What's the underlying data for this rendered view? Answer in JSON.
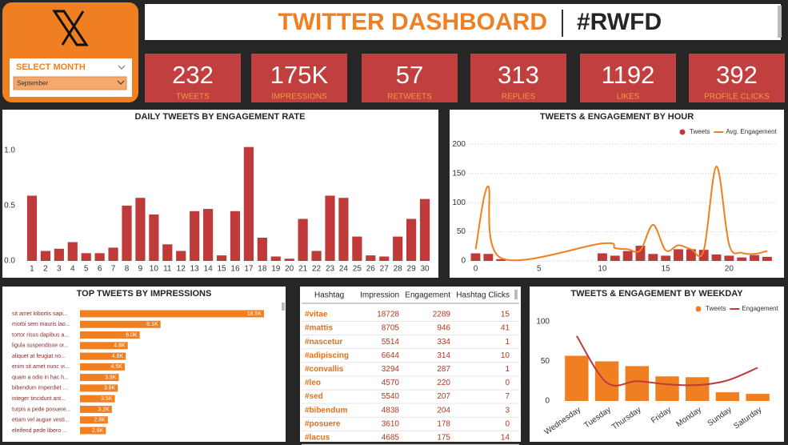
{
  "header": {
    "title": "TWITTER DASHBOARD",
    "tag": "#RWFD"
  },
  "filter": {
    "label": "SELECT MONTH",
    "value": "September"
  },
  "kpis": [
    {
      "value": "232",
      "label": "TWEETS"
    },
    {
      "value": "175K",
      "label": "IMPRESSIONS"
    },
    {
      "value": "57",
      "label": "RETWEETS"
    },
    {
      "value": "313",
      "label": "REPLIES"
    },
    {
      "value": "1192",
      "label": "LIKES"
    },
    {
      "value": "392",
      "label": "PROFILE CLICKS"
    }
  ],
  "chart_data": [
    {
      "type": "bar",
      "title": "DAILY TWEETS BY ENGAGEMENT RATE",
      "categories": [
        1,
        2,
        3,
        4,
        5,
        6,
        7,
        8,
        9,
        10,
        11,
        12,
        13,
        14,
        15,
        16,
        17,
        18,
        19,
        20,
        21,
        22,
        23,
        24,
        25,
        26,
        27,
        28,
        29,
        30
      ],
      "values": [
        0.59,
        0.09,
        0.11,
        0.17,
        0.07,
        0.07,
        0.12,
        0.5,
        0.57,
        0.42,
        0.15,
        0.09,
        0.45,
        0.47,
        0.05,
        0.45,
        1.03,
        0.21,
        0.04,
        0.02,
        0.38,
        0.09,
        0.59,
        0.57,
        0.22,
        0.05,
        0.04,
        0.22,
        0.38,
        0.56
      ],
      "color": "#c0393b",
      "ylim": [
        0,
        1.1
      ],
      "yticks": [
        {
          "value": 0,
          "label": "0.0"
        },
        {
          "value": 0.5,
          "label": "0.5"
        },
        {
          "value": 1,
          "label": "1.0"
        }
      ],
      "grid": false
    },
    {
      "type": "combo",
      "title": "TWEETS & ENGAGEMENT BY HOUR",
      "x": [
        0,
        1,
        2,
        10,
        11,
        12,
        13,
        14,
        15,
        16,
        17,
        18,
        19,
        20,
        21,
        22,
        23
      ],
      "series": [
        {
          "name": "Tweets",
          "type": "bar",
          "color": "#c0393b",
          "values": [
            13,
            12,
            3,
            13,
            9,
            17,
            26,
            12,
            9,
            20,
            20,
            19,
            11,
            9,
            6,
            10,
            7
          ]
        },
        {
          "name": "Avg. Engagement",
          "type": "line",
          "color": "#f07f21",
          "values": [
            20,
            128,
            5,
            30,
            22,
            20,
            18,
            62,
            18,
            27,
            20,
            18,
            162,
            28,
            14,
            12,
            17
          ]
        }
      ],
      "xlim": [
        -0.6,
        23.7
      ],
      "xticks": [
        0,
        5,
        10,
        15,
        20
      ],
      "ylim": [
        0,
        210
      ],
      "yticks": [
        0,
        50,
        100,
        150,
        200
      ],
      "grid": true,
      "legend": "top-right",
      "smooth": true
    },
    {
      "type": "barh",
      "title": "TOP TWEETS BY IMPRESSIONS",
      "categories": [
        "sit amet lobortis sapi...",
        "morbi sem mauris lao...",
        "tortor risus dapibus a...",
        "ligula suspendisse or...",
        "aliquet at feugiat no...",
        "enim sit amet nunc vi...",
        "quam a odio in hac h...",
        "bibendum imperdiet ...",
        "integer tincidunt ant...",
        "turpis a pede posuere...",
        "etiam vel augue vesti...",
        "eleifend pede libero ..."
      ],
      "values": [
        18500,
        8100,
        6000,
        4800,
        4600,
        4500,
        3900,
        3800,
        3500,
        3200,
        2800,
        2600
      ],
      "value_labels": [
        "18.5K",
        "8.1K",
        "6.0K",
        "4.8K",
        "4.6K",
        "4.5K",
        "3.9K",
        "3.8K",
        "3.5K",
        "3.2K",
        "2.8K",
        "2.6K"
      ],
      "color": "#f07f21"
    },
    {
      "type": "combo",
      "title": "TWEETS & ENGAGEMENT BY WEEKDAY",
      "categories": [
        "Wednesday",
        "Tuesday",
        "Thursday",
        "Friday",
        "Monday",
        "Sunday",
        "Saturday"
      ],
      "series": [
        {
          "name": "Tweets",
          "type": "bar",
          "color": "#f07f21",
          "values": [
            57,
            50,
            44,
            31,
            30,
            11,
            9
          ]
        },
        {
          "name": "Engagement",
          "type": "line",
          "color": "#c0393b",
          "values": [
            82,
            23,
            25,
            21,
            20,
            26,
            42
          ]
        }
      ],
      "ylim": [
        0,
        110
      ],
      "yticks": [
        0,
        50,
        100
      ],
      "grid": false,
      "legend": "top-right",
      "smooth": true
    }
  ],
  "table": {
    "columns": [
      "Hashtag",
      "Impression",
      "Engagement",
      "Hashtag Clicks"
    ],
    "rows": [
      [
        "#vitae",
        18728,
        2289,
        15
      ],
      [
        "#mattis",
        8705,
        946,
        41
      ],
      [
        "#nascetur",
        5514,
        334,
        1
      ],
      [
        "#adipiscing",
        6644,
        314,
        10
      ],
      [
        "#convallis",
        3294,
        287,
        1
      ],
      [
        "#leo",
        4570,
        220,
        0
      ],
      [
        "#sed",
        5540,
        207,
        7
      ],
      [
        "#bibendum",
        4838,
        204,
        3
      ],
      [
        "#posuere",
        3610,
        178,
        0
      ],
      [
        "#lacus",
        4685,
        175,
        14
      ]
    ]
  }
}
